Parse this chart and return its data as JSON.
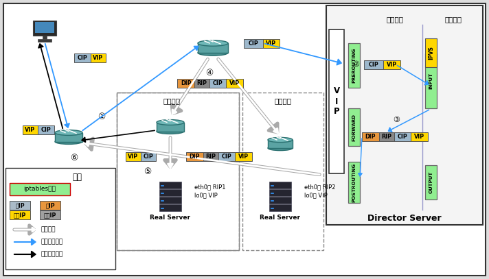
{
  "title_director": "Director Server",
  "kernel_space": "内核空间",
  "user_space": "用户空间",
  "legend_title": "图注",
  "legend_iptables": "iptables的链",
  "legend_tunnel": "隙道流向",
  "legend_request": "请求报文流向",
  "legend_response": "响应报文流向",
  "guangzhou": "广州区域",
  "beijing": "北京区域",
  "real_server": "Real Server",
  "eth0_rip1": "eth0： RIP1",
  "lo0_vip1": "lo0： VIP",
  "eth0_rip2": "eth0： RIP2",
  "lo0_vip2": "lo0： VIP",
  "vip_label": "V\nI\nP",
  "col_green": "#90EE90",
  "col_orange": "#E8963C",
  "col_yellow": "#FFD700",
  "col_gray_dark": "#888888",
  "col_gray_light": "#AAAAAA",
  "col_blue_ip": "#9DB8CC",
  "col_blue_arrow": "#3399FF",
  "col_tunnel_fill": "#D8D8D8",
  "col_tunnel_border": "#999999"
}
